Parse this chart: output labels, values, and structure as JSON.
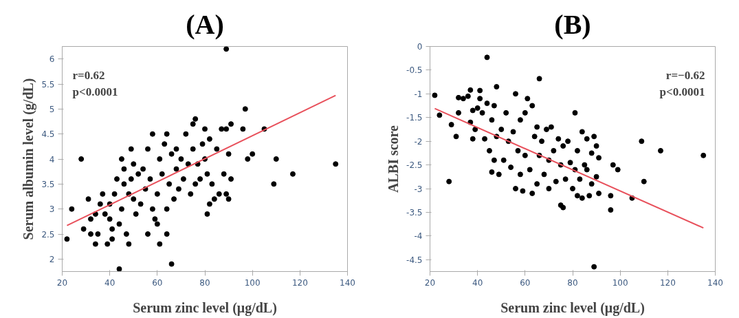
{
  "chart_data": [
    {
      "type": "scatter",
      "title": "(A)",
      "xlabel": "Serum zinc level (μg/dL)",
      "ylabel": "Serum albumin level (g/dL)",
      "xlim": [
        20,
        140
      ],
      "ylim": [
        1.75,
        6.25
      ],
      "xticks": [
        20,
        40,
        60,
        80,
        100,
        120,
        140
      ],
      "yticks": [
        2,
        2.5,
        3,
        3.5,
        4,
        4.5,
        5,
        5.5,
        6
      ],
      "annotations": [
        "r=0.62",
        "p<0.0001"
      ],
      "series": [
        {
          "marker": "circle",
          "color": "#000000",
          "x": [
            22,
            24,
            28,
            29,
            31,
            32,
            32,
            34,
            35,
            34,
            36,
            37,
            38,
            39,
            40,
            40,
            41,
            41,
            42,
            43,
            44,
            44,
            45,
            45,
            46,
            46,
            47,
            48,
            48,
            49,
            49,
            50,
            50,
            51,
            52,
            53,
            54,
            55,
            56,
            56,
            57,
            58,
            58,
            59,
            60,
            60,
            61,
            61,
            62,
            63,
            64,
            64,
            64,
            65,
            66,
            66,
            67,
            68,
            68,
            69,
            70,
            71,
            72,
            73,
            74,
            75,
            75,
            76,
            76,
            77,
            78,
            79,
            80,
            80,
            81,
            81,
            82,
            82,
            83,
            84,
            85,
            86,
            87,
            88,
            89,
            89,
            89,
            90,
            90,
            91,
            91,
            96,
            97,
            98,
            100,
            105,
            109,
            110,
            117,
            135
          ],
          "values": [
            2.4,
            3.0,
            4.0,
            2.6,
            3.2,
            2.8,
            2.5,
            2.3,
            2.5,
            2.9,
            3.1,
            3.3,
            2.9,
            2.3,
            2.8,
            3.1,
            2.6,
            2.4,
            3.3,
            3.6,
            1.8,
            2.7,
            3.0,
            4.0,
            3.5,
            3.8,
            2.5,
            2.3,
            3.3,
            3.6,
            4.2,
            3.9,
            3.2,
            2.9,
            3.7,
            3.1,
            3.8,
            3.4,
            2.5,
            4.2,
            3.6,
            3.0,
            4.5,
            2.8,
            2.7,
            3.3,
            4.0,
            2.3,
            3.7,
            4.3,
            3.0,
            2.5,
            4.5,
            3.5,
            1.9,
            4.1,
            3.2,
            3.8,
            4.2,
            3.4,
            4.0,
            3.6,
            4.5,
            3.9,
            3.3,
            4.2,
            4.7,
            4.8,
            3.5,
            3.9,
            3.6,
            4.3,
            4.0,
            4.6,
            2.9,
            3.7,
            4.4,
            3.1,
            3.5,
            3.2,
            4.2,
            3.3,
            4.6,
            3.7,
            6.2,
            4.6,
            3.3,
            3.2,
            4.1,
            4.7,
            3.6,
            4.6,
            5.0,
            4.0,
            4.1,
            4.6,
            3.5,
            4.0,
            3.7,
            3.9
          ]
        },
        {
          "type": "line",
          "color": "#e8505b",
          "x": [
            22,
            135
          ],
          "values": [
            2.67,
            5.27
          ]
        }
      ]
    },
    {
      "type": "scatter",
      "title": "(B)",
      "xlabel": "Serum zinc level (μg/dL)",
      "ylabel": "ALBI score",
      "xlim": [
        20,
        140
      ],
      "ylim": [
        -4.75,
        0
      ],
      "xticks": [
        20,
        40,
        60,
        80,
        100,
        120,
        140
      ],
      "yticks": [
        0,
        -0.5,
        -1,
        -1.5,
        -2,
        -2.5,
        -3,
        -3.5,
        -4,
        -4.5
      ],
      "annotations": [
        "r=−0.62",
        "p<0.0001"
      ],
      "series": [
        {
          "marker": "circle",
          "color": "#000000",
          "x": [
            22,
            24,
            28,
            29,
            31,
            32,
            32,
            34,
            36,
            37,
            37,
            38,
            38,
            39,
            40,
            41,
            41,
            42,
            43,
            44,
            44,
            45,
            46,
            46,
            47,
            47,
            48,
            48,
            49,
            50,
            51,
            52,
            53,
            54,
            55,
            56,
            56,
            57,
            58,
            58,
            59,
            60,
            60,
            61,
            62,
            63,
            63,
            64,
            65,
            65,
            66,
            66,
            67,
            68,
            69,
            70,
            70,
            71,
            72,
            73,
            74,
            75,
            75,
            76,
            76,
            77,
            78,
            79,
            80,
            81,
            81,
            82,
            82,
            83,
            84,
            84,
            85,
            86,
            86,
            87,
            88,
            88,
            89,
            89,
            90,
            90,
            91,
            91,
            96,
            96,
            97,
            99,
            105,
            109,
            110,
            117,
            135
          ],
          "values": [
            -1.03,
            -1.45,
            -2.85,
            -1.65,
            -1.9,
            -1.08,
            -1.4,
            -1.1,
            -1.05,
            -1.6,
            -0.92,
            -1.35,
            -1.95,
            -1.75,
            -1.3,
            -0.93,
            -1.1,
            -1.4,
            -1.95,
            -0.23,
            -1.2,
            -2.2,
            -2.65,
            -1.55,
            -2.4,
            -1.25,
            -0.85,
            -1.9,
            -2.7,
            -1.75,
            -2.4,
            -1.4,
            -2.0,
            -2.55,
            -1.8,
            -1.0,
            -3.0,
            -2.2,
            -1.55,
            -2.7,
            -3.05,
            -1.4,
            -2.3,
            -1.1,
            -2.6,
            -1.25,
            -3.1,
            -1.9,
            -2.9,
            -1.7,
            -0.68,
            -2.3,
            -2.0,
            -2.7,
            -1.75,
            -3.0,
            -2.4,
            -1.7,
            -2.2,
            -2.85,
            -1.95,
            -3.35,
            -2.5,
            -3.4,
            -2.1,
            -2.8,
            -2.0,
            -2.45,
            -3.0,
            -1.4,
            -2.6,
            -2.2,
            -3.15,
            -2.8,
            -1.8,
            -3.2,
            -2.5,
            -1.95,
            -2.6,
            -3.15,
            -2.25,
            -2.9,
            -1.9,
            -4.65,
            -2.1,
            -2.75,
            -2.35,
            -3.1,
            -3.15,
            -3.45,
            -2.5,
            -2.6,
            -3.2,
            -2.0,
            -2.85,
            -2.2,
            -2.3
          ]
        },
        {
          "type": "line",
          "color": "#e8505b",
          "x": [
            22,
            135
          ],
          "values": [
            -1.31,
            -3.83
          ]
        }
      ]
    }
  ]
}
